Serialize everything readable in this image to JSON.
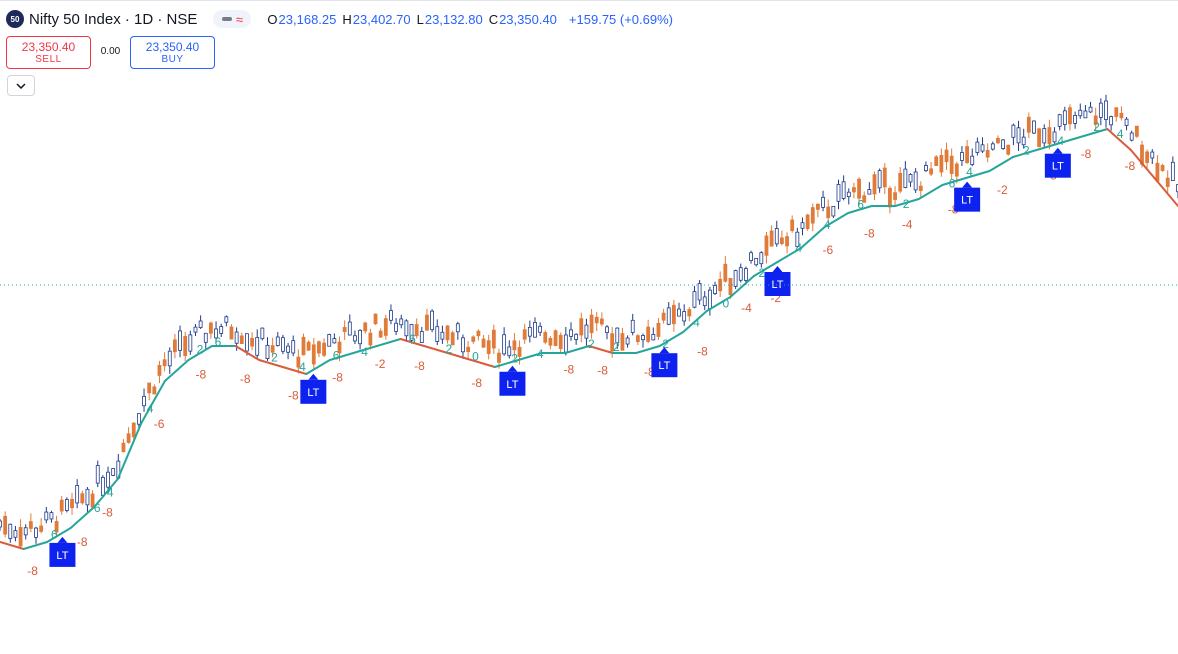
{
  "header": {
    "badge": "50",
    "symbol_title": "Nifty 50 Index · 1D · NSE",
    "ohlc": {
      "o_label": "O",
      "o_value": "23,168.25",
      "h_label": "H",
      "h_value": "23,402.70",
      "l_label": "L",
      "l_value": "23,132.80",
      "c_label": "C",
      "c_value": "23,350.40",
      "change": "+159.75 (+0.69%)"
    }
  },
  "trade_panel": {
    "sell_price": "23,350.40",
    "sell_label": "SELL",
    "spread": "0.00",
    "buy_price": "23,350.40",
    "buy_label": "BUY"
  },
  "icons": {
    "collapse": "chevron-down-icon"
  },
  "colors": {
    "up_candle": "#1e3a8a",
    "down_candle": "#e07b39",
    "bull_line": "#26a69a",
    "bear_line": "#d95c3b",
    "lt_badge": "#0d22ee",
    "price_line": "#26a69a"
  },
  "chart_data": {
    "type": "line",
    "description_series": [
      {
        "name": "",
        "comment": "trend band (teal = rising, red = falling), approximate relative levels 0-100",
        "x": [
          0,
          2,
          4,
          6,
          8,
          10,
          12,
          14,
          16,
          18,
          20,
          22,
          24,
          26,
          28,
          30,
          32,
          34,
          36,
          38,
          40,
          42,
          44,
          46,
          48,
          50,
          52,
          54,
          56,
          58,
          60,
          62,
          64,
          66,
          68,
          70,
          72,
          74,
          76,
          78,
          80,
          82,
          84,
          86,
          88,
          90,
          92,
          94,
          96,
          98,
          100
        ],
        "values": [
          29,
          28,
          29,
          31,
          34,
          38,
          46,
          52,
          55,
          57,
          57,
          55,
          54,
          53,
          55,
          56,
          57,
          58,
          57,
          56,
          55,
          54,
          55,
          56,
          56,
          57,
          56,
          56,
          57,
          59,
          62,
          64,
          67,
          69,
          71,
          74,
          76,
          77,
          77,
          78,
          80,
          81,
          82,
          84,
          85,
          86,
          87,
          88,
          85,
          81,
          77
        ]
      }
    ],
    "annotations": {
      "lt_labels": [
        "LT",
        "LT",
        "LT",
        "LT",
        "LT",
        "LT",
        "LT"
      ],
      "bull_numbers": [
        "6",
        "6",
        "4",
        "4",
        "2",
        "6",
        "2",
        "4",
        "6",
        "4",
        "6",
        "2",
        "0",
        "2",
        "4",
        "2",
        "2",
        "2",
        "4",
        "0",
        "2",
        "4",
        "4",
        "6",
        "2",
        "6",
        "4",
        "2",
        "4",
        "2",
        "4"
      ],
      "bear_numbers": [
        "-8",
        "-8",
        "-8",
        "-6",
        "-8",
        "-8",
        "-8",
        "-8",
        "-2",
        "-8",
        "-8",
        "-6",
        "-8",
        "-8",
        "-8",
        "-8",
        "-4",
        "-2",
        "-6",
        "-8",
        "-4",
        "-8",
        "-2",
        "-8",
        "-8",
        "-8"
      ]
    },
    "grid": false,
    "last_price_line": "dotted"
  }
}
